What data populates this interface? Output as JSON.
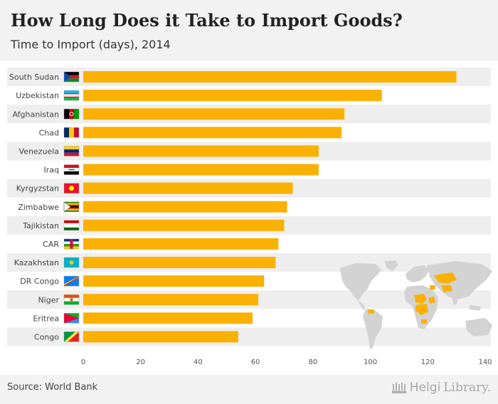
{
  "header": {
    "title": "How Long Does it Take to Import Goods?",
    "subtitle": "Time to Import (days), 2014"
  },
  "footer": {
    "source": "Source: World Bank",
    "logo_text_a": "Helgi",
    "logo_text_b": "Library."
  },
  "icons": {
    "world_map": "world-map-icon",
    "library_logo": "library-building-icon"
  },
  "colors": {
    "bar": "#fbb104",
    "row_alt": "#eeeeee",
    "map_land": "#d3d3d3",
    "map_highlight": "#fbb104"
  },
  "chart_data": {
    "type": "bar",
    "orientation": "horizontal",
    "title": "How Long Does it Take to Import Goods?",
    "subtitle": "Time to Import (days), 2014",
    "categories": [
      "South Sudan",
      "Uzbekistan",
      "Afghanistan",
      "Chad",
      "Venezuela",
      "Iraq",
      "Kyrgyzstan",
      "Zimbabwe",
      "Tajikistan",
      "CAR",
      "Kazakhstan",
      "DR Congo",
      "Niger",
      "Eritrea",
      "Congo"
    ],
    "values": [
      130,
      104,
      91,
      90,
      82,
      82,
      73,
      71,
      70,
      68,
      67,
      63,
      61,
      59,
      54
    ],
    "xlim": [
      0,
      140
    ],
    "xticks": [
      0,
      20,
      40,
      60,
      80,
      100,
      120,
      140
    ],
    "xlabel": "",
    "ylabel": "",
    "source": "World Bank"
  }
}
